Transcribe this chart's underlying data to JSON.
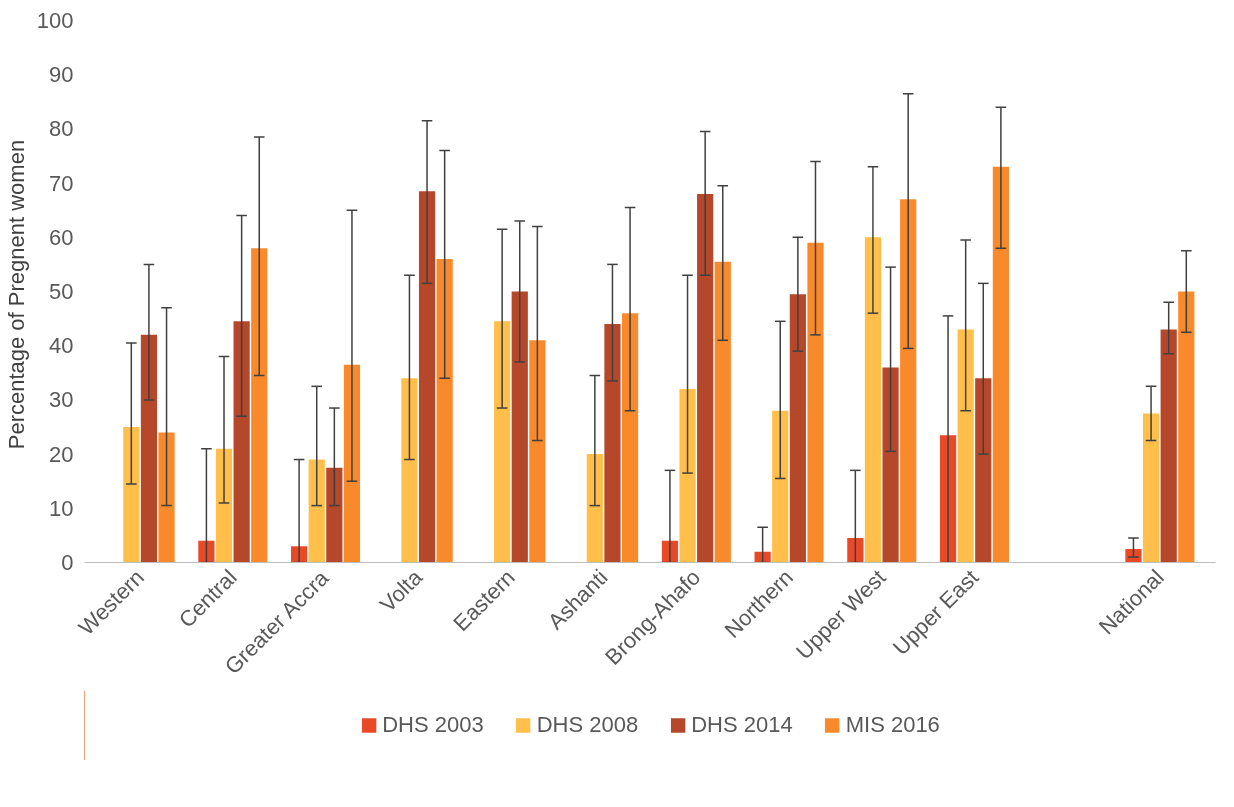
{
  "chart_data": {
    "type": "bar",
    "ylabel": "Percentage of  Pregnent women",
    "categories": [
      "Western",
      "Central",
      "Greater Accra",
      "Volta",
      "Eastern",
      "Ashanti",
      "Brong-Ahafo",
      "Northern",
      "Upper West",
      "Upper East",
      null,
      "National"
    ],
    "ylim": [
      0,
      100
    ],
    "yticks": [
      0,
      10,
      20,
      30,
      40,
      50,
      60,
      70,
      80,
      90,
      100
    ],
    "grid": false,
    "legend": "bottom",
    "series": [
      {
        "name": "DHS 2003",
        "color": "#e84a27",
        "values": [
          0,
          4,
          3,
          0,
          0,
          0,
          4,
          2,
          4.5,
          23.5,
          null,
          2.5
        ],
        "errors": [
          null,
          [
            0,
            21
          ],
          [
            0,
            19
          ],
          null,
          null,
          null,
          [
            0,
            17
          ],
          [
            0,
            6.5
          ],
          [
            0,
            17
          ],
          [
            0,
            45.5
          ],
          null,
          [
            1,
            4.5
          ]
        ]
      },
      {
        "name": "DHS 2008",
        "color": "#ffbf4a",
        "values": [
          25,
          21,
          19,
          34,
          44.5,
          20,
          32,
          28,
          60,
          43,
          null,
          27.5
        ],
        "errors": [
          [
            14.5,
            40.5
          ],
          [
            11,
            38
          ],
          [
            10.5,
            32.5
          ],
          [
            19,
            53
          ],
          [
            28.5,
            61.5
          ],
          [
            10.5,
            34.5
          ],
          [
            16.5,
            53
          ],
          [
            15.5,
            44.5
          ],
          [
            46,
            73
          ],
          [
            28,
            59.5
          ],
          null,
          [
            22.5,
            32.5
          ]
        ]
      },
      {
        "name": "DHS 2014",
        "color": "#b5472b",
        "values": [
          42,
          44.5,
          17.5,
          68.5,
          50,
          44,
          68,
          49.5,
          36,
          34,
          null,
          43
        ],
        "errors": [
          [
            30,
            55
          ],
          [
            27,
            64
          ],
          [
            10.5,
            28.5
          ],
          [
            51.5,
            81.5
          ],
          [
            37,
            63
          ],
          [
            33.5,
            55
          ],
          [
            53,
            79.5
          ],
          [
            39,
            60
          ],
          [
            20.5,
            54.5
          ],
          [
            20,
            51.5
          ],
          null,
          [
            38.5,
            48
          ]
        ]
      },
      {
        "name": "MIS 2016",
        "color": "#f98a2c",
        "values": [
          24,
          58,
          36.5,
          56,
          41,
          46,
          55.5,
          59,
          67,
          73,
          null,
          50
        ],
        "errors": [
          [
            10.5,
            47
          ],
          [
            34.5,
            78.5
          ],
          [
            15,
            65
          ],
          [
            34,
            76
          ],
          [
            22.5,
            62
          ],
          [
            28,
            65.5
          ],
          [
            41,
            69.5
          ],
          [
            42,
            74
          ],
          [
            39.5,
            86.5
          ],
          [
            58,
            84
          ],
          null,
          [
            42.5,
            57.5
          ]
        ]
      }
    ]
  }
}
